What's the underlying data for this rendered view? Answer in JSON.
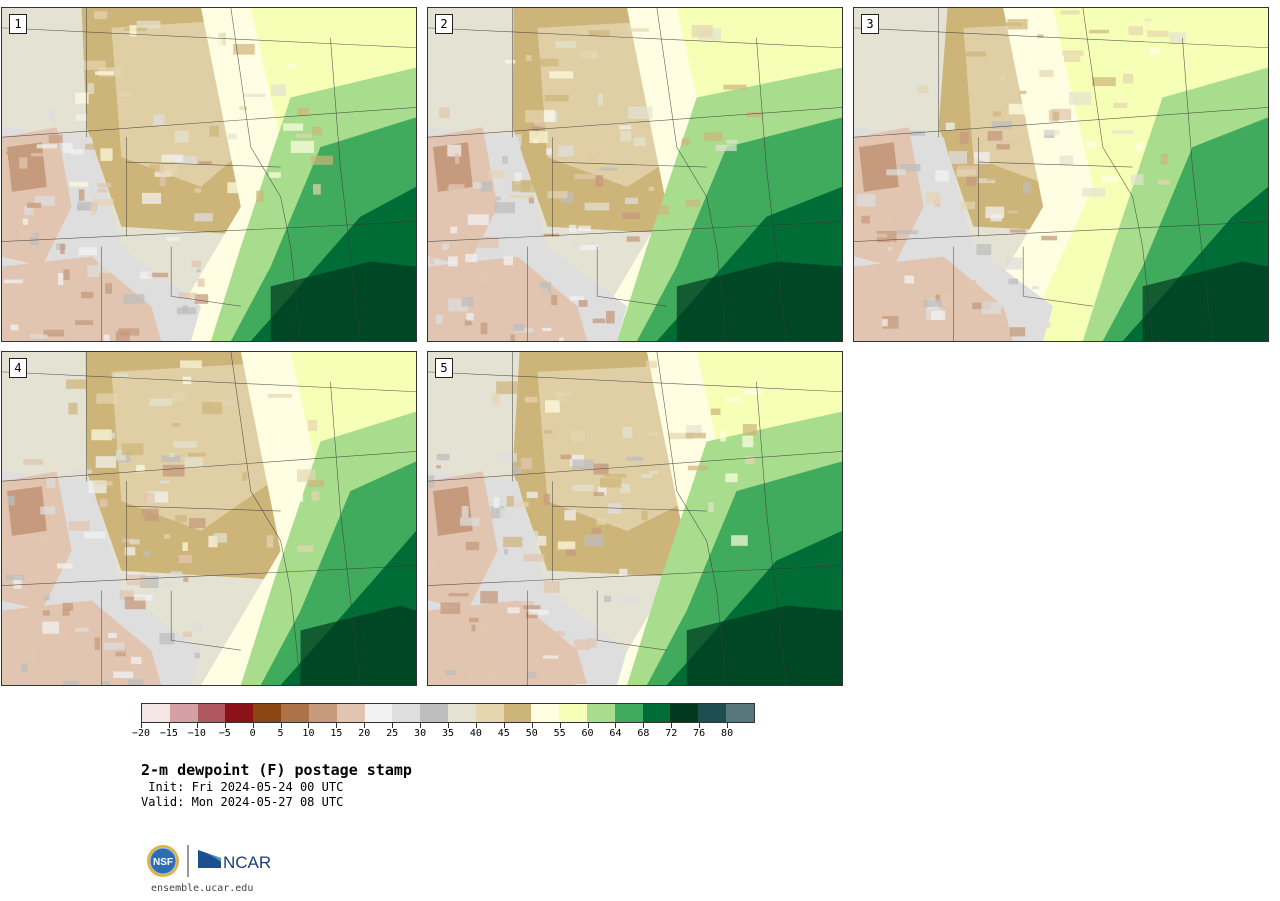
{
  "panels": [
    {
      "label": "1",
      "variant": 1
    },
    {
      "label": "2",
      "variant": 2
    },
    {
      "label": "3",
      "variant": 3
    },
    {
      "label": "4",
      "variant": 4
    },
    {
      "label": "5",
      "variant": 5
    }
  ],
  "colorbar": {
    "colors": [
      "#f5e6e6",
      "#d5a0a5",
      "#b0585f",
      "#8a1218",
      "#8b4513",
      "#ad7248",
      "#c59a7d",
      "#e2c5b0",
      "#f2f2f2",
      "#dedede",
      "#bdbdbd",
      "#e3e2d3",
      "#e5d6b0",
      "#cdb57a",
      "#fffee2",
      "#f6ffb6",
      "#a8dd8d",
      "#41ab5d",
      "#006d36",
      "#00391e",
      "#1d4d4f",
      "#56777c"
    ],
    "tick_labels": [
      "−20",
      "−15",
      "−10",
      "−5",
      "0",
      "5",
      "10",
      "15",
      "20",
      "25",
      "30",
      "35",
      "40",
      "45",
      "50",
      "55",
      "60",
      "64",
      "68",
      "72",
      "76",
      "80"
    ]
  },
  "title": "2-m dewpoint (F) postage stamp",
  "init_text": " Init: Fri 2024-05-24 00 UTC",
  "valid_text": "Valid: Mon 2024-05-27 08 UTC",
  "logos": {
    "nsf": "NSF",
    "ncar": "NCAR"
  },
  "url": "ensemble.ucar.edu"
}
